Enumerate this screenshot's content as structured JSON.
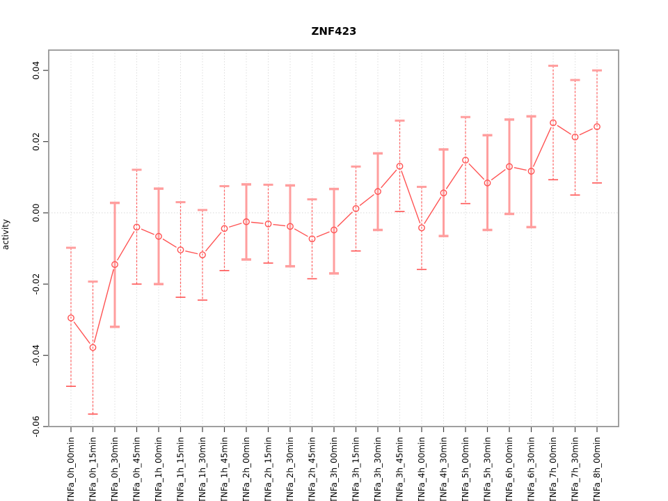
{
  "chart_data": {
    "type": "line",
    "title": "ZNF423",
    "ylabel": "activity",
    "xlabel": "",
    "legend": "none",
    "grid": "vertical dotted gridline per category; dotted horizontal line at y=0; gray box frame",
    "categories": [
      "TNFa_0h_00min",
      "TNFa_0h_15min",
      "TNFa_0h_30min",
      "TNFa_0h_45min",
      "TNFa_1h_00min",
      "TNFa_1h_15min",
      "TNFa_1h_30min",
      "TNFa_1h_45min",
      "TNFa_2h_00min",
      "TNFa_2h_15min",
      "TNFa_2h_30min",
      "TNFa_2h_45min",
      "TNFa_3h_00min",
      "TNFa_3h_15min",
      "TNFa_3h_30min",
      "TNFa_3h_45min",
      "TNFa_4h_00min",
      "TNFa_4h_30min",
      "TNFa_5h_00min",
      "TNFa_5h_30min",
      "TNFa_6h_00min",
      "TNFa_6h_30min",
      "TNFa_7h_00min",
      "TNFa_7h_30min",
      "TNFa_8h_00min"
    ],
    "series": [
      {
        "name": "activity",
        "values": [
          -0.0295,
          -0.0378,
          -0.0145,
          -0.004,
          -0.0066,
          -0.0104,
          -0.0118,
          -0.0044,
          -0.0025,
          -0.0031,
          -0.0038,
          -0.0073,
          -0.0048,
          0.0012,
          0.006,
          0.0131,
          -0.0042,
          0.0056,
          0.0148,
          0.0084,
          0.013,
          0.0117,
          0.0253,
          0.0213,
          0.0242
        ],
        "error_low": [
          -0.0487,
          -0.0565,
          -0.032,
          -0.02,
          -0.02,
          -0.0237,
          -0.0245,
          -0.0162,
          -0.0131,
          -0.0141,
          -0.015,
          -0.0185,
          -0.017,
          -0.0107,
          -0.0048,
          0.0004,
          -0.0159,
          -0.0065,
          0.0026,
          -0.0048,
          -0.0003,
          -0.004,
          0.0093,
          0.005,
          0.0084
        ],
        "error_high": [
          -0.0098,
          -0.0193,
          0.0028,
          0.0121,
          0.0068,
          0.003,
          0.0008,
          0.0075,
          0.008,
          0.0079,
          0.0077,
          0.0038,
          0.0067,
          0.013,
          0.0167,
          0.0259,
          0.0073,
          0.0178,
          0.0269,
          0.0218,
          0.0262,
          0.0271,
          0.0413,
          0.0373,
          0.04
        ]
      }
    ],
    "bar_emphasis": [
      "red",
      "red",
      "pink",
      "red",
      "pink",
      "red",
      "red",
      "red",
      "pink",
      "red",
      "pink",
      "red",
      "pink",
      "red",
      "pink",
      "red",
      "red",
      "pink",
      "red",
      "pink",
      "pink",
      "pink",
      "red",
      "red",
      "red"
    ],
    "ylim": [
      -0.06,
      0.0457
    ],
    "yticks": [
      -0.06,
      -0.04,
      -0.02,
      0,
      0.02,
      0.04
    ],
    "ytick_labels": [
      "-0.06",
      "-0.04",
      "-0.02",
      "0.00",
      "0.02",
      "0.04"
    ],
    "colors": {
      "point": "#ff5252",
      "line": "#ff5252",
      "bar_red": "#ff5252",
      "bar_pink": "#ff9e9e",
      "grid": "#dcdcdc",
      "zero_line": "#d8d8d8",
      "frame": "#969696",
      "tick": "#404040",
      "text": "#000000"
    }
  }
}
